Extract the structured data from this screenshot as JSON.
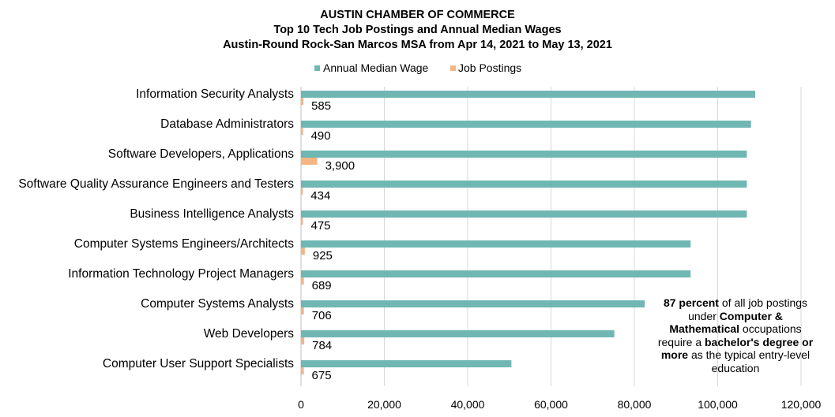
{
  "title": {
    "line1": "AUSTIN CHAMBER OF COMMERCE",
    "line2": "Top 10 Tech Job Postings and Annual Median Wages",
    "line3": "Austin-Round Rock-San Marcos MSA from Apr 14, 2021 to May 13, 2021"
  },
  "colors": {
    "wage": "#70b7b3",
    "postings": "#f4b583",
    "grid": "#d9d9d9"
  },
  "chart_data": {
    "type": "bar",
    "orientation": "horizontal",
    "categories": [
      "Information Security Analysts",
      "Database Administrators",
      "Software Developers, Applications",
      "Software Quality Assurance Engineers and Testers",
      "Business Intelligence Analysts",
      "Computer Systems Engineers/Architects",
      "Information Technology Project Managers",
      "Computer Systems Analysts",
      "Web Developers",
      "Computer User Support Specialists"
    ],
    "series": [
      {
        "name": "Annual Median Wage",
        "values": [
          109000,
          108000,
          107000,
          107000,
          107000,
          93500,
          93500,
          82500,
          75200,
          50500
        ]
      },
      {
        "name": "Job Postings",
        "values": [
          585,
          490,
          3900,
          434,
          475,
          925,
          689,
          706,
          784,
          675
        ]
      }
    ],
    "data_labels": [
      "585",
      "490",
      "3,900",
      "434",
      "475",
      "925",
      "689",
      "706",
      "784",
      "675"
    ],
    "x_ticks": [
      "0",
      "20,000",
      "40,000",
      "60,000",
      "80,000",
      "100,000",
      "120,000"
    ],
    "xlim": [
      0,
      120000
    ],
    "grid": true,
    "legend_position": "top-center"
  },
  "annotation": {
    "bold1": "87 percent",
    "text1": " of all job postings under ",
    "bold2": "Computer & Mathematical",
    "text2": " occupations require a ",
    "bold3": "bachelor's degree or more",
    "text3": " as the typical entry-level education"
  }
}
